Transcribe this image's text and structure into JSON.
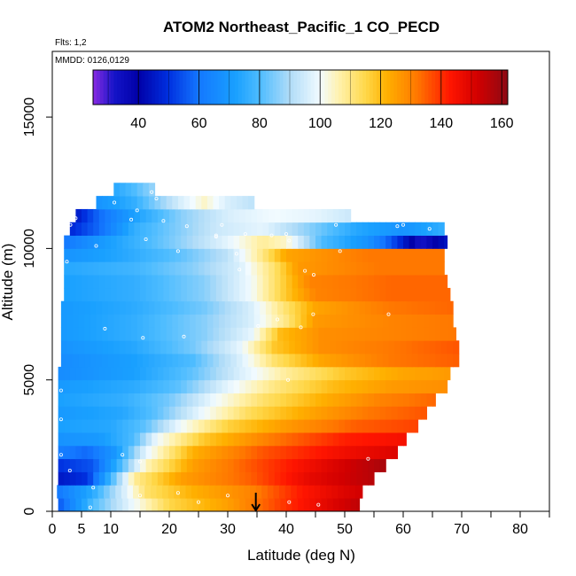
{
  "chart_data": {
    "type": "heatmap",
    "title": "ATOM2 Northeast_Pacific_1 CO_PECD",
    "flights_label": "Flts: 1,2",
    "dates_label": "MMDD: 0126,0129",
    "xlabel": "Latitude (deg N)",
    "ylabel": "Altitude (m)",
    "xlim": [
      0,
      85
    ],
    "ylim": [
      0,
      17500
    ],
    "x_ticks": [
      0,
      5,
      10,
      20,
      30,
      40,
      50,
      60,
      70,
      80
    ],
    "x_minor_ticks": [
      15,
      25,
      35,
      45,
      55,
      65,
      75,
      85
    ],
    "y_ticks": [
      0,
      5000,
      10000,
      15000
    ],
    "colorbar": {
      "range": [
        25,
        162
      ],
      "ticks": [
        40,
        60,
        80,
        100,
        120,
        140,
        160
      ],
      "stops": [
        {
          "v": 25,
          "c": "#8a2be2"
        },
        {
          "v": 32,
          "c": "#1414c8"
        },
        {
          "v": 40,
          "c": "#0000a8"
        },
        {
          "v": 50,
          "c": "#0030e0"
        },
        {
          "v": 60,
          "c": "#1478ff"
        },
        {
          "v": 72,
          "c": "#19a0ff"
        },
        {
          "v": 80,
          "c": "#4dbcff"
        },
        {
          "v": 90,
          "c": "#b0dcf8"
        },
        {
          "v": 100,
          "c": "#f2fbff"
        },
        {
          "v": 106,
          "c": "#fff2b0"
        },
        {
          "v": 115,
          "c": "#ffd84a"
        },
        {
          "v": 122,
          "c": "#ffb000"
        },
        {
          "v": 132,
          "c": "#ff7800"
        },
        {
          "v": 143,
          "c": "#ff1500"
        },
        {
          "v": 152,
          "c": "#d20000"
        },
        {
          "v": 162,
          "c": "#8c0a14"
        }
      ]
    },
    "marker": {
      "x": 34.8,
      "label": "arrow"
    },
    "alt_bins": [
      {
        "alt": 250,
        "lat": [
          1.0,
          52.5
        ],
        "vals": [
          [
            1,
            55
          ],
          [
            7,
            80
          ],
          [
            14,
            100
          ],
          [
            20,
            115
          ],
          [
            30,
            125
          ],
          [
            40,
            140
          ],
          [
            48,
            150
          ],
          [
            52.5,
            155
          ]
        ]
      },
      {
        "alt": 750,
        "lat": [
          0.8,
          53.0
        ],
        "vals": [
          [
            0.8,
            60
          ],
          [
            7,
            75
          ],
          [
            12,
            95
          ],
          [
            16,
            112
          ],
          [
            24,
            122
          ],
          [
            34,
            130
          ],
          [
            42,
            142
          ],
          [
            50,
            150
          ],
          [
            53,
            152
          ]
        ]
      },
      {
        "alt": 1250,
        "lat": [
          1.0,
          55.0
        ],
        "vals": [
          [
            1,
            45
          ],
          [
            6,
            50
          ],
          [
            10,
            78
          ],
          [
            14,
            108
          ],
          [
            22,
            125
          ],
          [
            34,
            135
          ],
          [
            44,
            148
          ],
          [
            55,
            156
          ]
        ]
      },
      {
        "alt": 1750,
        "lat": [
          1.0,
          57.0
        ],
        "vals": [
          [
            1,
            50
          ],
          [
            7,
            55
          ],
          [
            11,
            75
          ],
          [
            16,
            105
          ],
          [
            24,
            125
          ],
          [
            36,
            138
          ],
          [
            48,
            150
          ],
          [
            57,
            158
          ]
        ]
      },
      {
        "alt": 2250,
        "lat": [
          1.0,
          59.0
        ],
        "vals": [
          [
            1,
            62
          ],
          [
            6,
            58
          ],
          [
            11,
            70
          ],
          [
            16,
            98
          ],
          [
            24,
            122
          ],
          [
            36,
            136
          ],
          [
            50,
            146
          ],
          [
            59,
            150
          ]
        ]
      },
      {
        "alt": 2750,
        "lat": [
          1.0,
          60.5
        ],
        "vals": [
          [
            1,
            68
          ],
          [
            8,
            70
          ],
          [
            14,
            80
          ],
          [
            18,
            100
          ],
          [
            26,
            118
          ],
          [
            38,
            132
          ],
          [
            50,
            142
          ],
          [
            60.5,
            145
          ]
        ]
      },
      {
        "alt": 3250,
        "lat": [
          1.0,
          62.5
        ],
        "vals": [
          [
            1,
            72
          ],
          [
            10,
            74
          ],
          [
            16,
            82
          ],
          [
            22,
            100
          ],
          [
            30,
            116
          ],
          [
            40,
            126
          ],
          [
            52,
            135
          ],
          [
            62.5,
            138
          ]
        ]
      },
      {
        "alt": 3750,
        "lat": [
          1.0,
          64.0
        ],
        "vals": [
          [
            1,
            70
          ],
          [
            12,
            74
          ],
          [
            18,
            82
          ],
          [
            26,
            100
          ],
          [
            34,
            114
          ],
          [
            44,
            124
          ],
          [
            54,
            132
          ],
          [
            64,
            136
          ]
        ]
      },
      {
        "alt": 4250,
        "lat": [
          1.0,
          65.5
        ],
        "vals": [
          [
            1,
            72
          ],
          [
            12,
            76
          ],
          [
            20,
            84
          ],
          [
            28,
            100
          ],
          [
            36,
            112
          ],
          [
            46,
            122
          ],
          [
            56,
            130
          ],
          [
            65.5,
            134
          ]
        ]
      },
      {
        "alt": 4750,
        "lat": [
          1.0,
          67.5
        ],
        "vals": [
          [
            1,
            70
          ],
          [
            14,
            75
          ],
          [
            22,
            82
          ],
          [
            30,
            98
          ],
          [
            38,
            110
          ],
          [
            48,
            120
          ],
          [
            58,
            126
          ],
          [
            67.5,
            128
          ]
        ]
      },
      {
        "alt": 5250,
        "lat": [
          1.0,
          68.0
        ],
        "vals": [
          [
            1,
            66
          ],
          [
            14,
            72
          ],
          [
            24,
            82
          ],
          [
            32,
            96
          ],
          [
            40,
            108
          ],
          [
            50,
            118
          ],
          [
            60,
            124
          ],
          [
            68,
            126
          ]
        ]
      },
      {
        "alt": 5750,
        "lat": [
          1.5,
          69.5
        ],
        "vals": [
          [
            1.5,
            66
          ],
          [
            14,
            72
          ],
          [
            24,
            80
          ],
          [
            32,
            96
          ],
          [
            38,
            112
          ],
          [
            46,
            124
          ],
          [
            58,
            132
          ],
          [
            69.5,
            135
          ]
        ]
      },
      {
        "alt": 6250,
        "lat": [
          1.5,
          69.5
        ],
        "vals": [
          [
            1.5,
            68
          ],
          [
            14,
            74
          ],
          [
            24,
            84
          ],
          [
            32,
            98
          ],
          [
            38,
            118
          ],
          [
            46,
            128
          ],
          [
            58,
            132
          ],
          [
            69.5,
            136
          ]
        ]
      },
      {
        "alt": 6750,
        "lat": [
          1.5,
          69.0
        ],
        "vals": [
          [
            1.5,
            70
          ],
          [
            14,
            76
          ],
          [
            26,
            86
          ],
          [
            34,
            98
          ],
          [
            39,
            120
          ],
          [
            46,
            128
          ],
          [
            58,
            130
          ],
          [
            69,
            132
          ]
        ]
      },
      {
        "alt": 7250,
        "lat": [
          1.5,
          68.5
        ],
        "vals": [
          [
            1.5,
            70
          ],
          [
            14,
            76
          ],
          [
            26,
            86
          ],
          [
            34,
            96
          ],
          [
            40,
            110
          ],
          [
            45,
            126
          ],
          [
            58,
            130
          ],
          [
            68.5,
            132
          ]
        ]
      },
      {
        "alt": 7750,
        "lat": [
          1.5,
          68.5
        ],
        "vals": [
          [
            1.5,
            70
          ],
          [
            14,
            75
          ],
          [
            26,
            84
          ],
          [
            34,
            96
          ],
          [
            40,
            112
          ],
          [
            45,
            124
          ],
          [
            58,
            132
          ],
          [
            68.5,
            134
          ]
        ]
      },
      {
        "alt": 8250,
        "lat": [
          2.0,
          68.0
        ],
        "vals": [
          [
            2,
            72
          ],
          [
            14,
            76
          ],
          [
            26,
            86
          ],
          [
            34,
            100
          ],
          [
            40,
            118
          ],
          [
            45,
            130
          ],
          [
            58,
            134
          ],
          [
            68,
            134
          ]
        ]
      },
      {
        "alt": 8750,
        "lat": [
          2.0,
          67.5
        ],
        "vals": [
          [
            2,
            72
          ],
          [
            14,
            76
          ],
          [
            26,
            86
          ],
          [
            34,
            100
          ],
          [
            40,
            118
          ],
          [
            44,
            130
          ],
          [
            58,
            134
          ],
          [
            67.5,
            134
          ]
        ]
      },
      {
        "alt": 9250,
        "lat": [
          2.0,
          67.0
        ],
        "vals": [
          [
            2,
            74
          ],
          [
            14,
            78
          ],
          [
            24,
            86
          ],
          [
            32,
            96
          ],
          [
            38,
            112
          ],
          [
            42,
            126
          ],
          [
            56,
            132
          ],
          [
            67,
            132
          ]
        ]
      },
      {
        "alt": 9750,
        "lat": [
          2.0,
          67.0
        ],
        "vals": [
          [
            2,
            68
          ],
          [
            12,
            74
          ],
          [
            22,
            82
          ],
          [
            30,
            92
          ],
          [
            36,
            110
          ],
          [
            40,
            124
          ],
          [
            54,
            132
          ],
          [
            67,
            132
          ]
        ]
      },
      {
        "alt": 10250,
        "lat": [
          2.0,
          67.5
        ],
        "vals": [
          [
            2,
            60
          ],
          [
            10,
            72
          ],
          [
            20,
            84
          ],
          [
            30,
            98
          ],
          [
            36,
            108
          ],
          [
            40,
            104
          ],
          [
            46,
            80
          ],
          [
            54,
            68
          ],
          [
            58,
            55
          ],
          [
            61,
            42
          ],
          [
            63,
            32
          ],
          [
            67.5,
            45
          ]
        ]
      },
      {
        "alt": 10750,
        "lat": [
          3.0,
          67.0
        ],
        "vals": [
          [
            3,
            48
          ],
          [
            8,
            58
          ],
          [
            14,
            76
          ],
          [
            22,
            86
          ],
          [
            28,
            94
          ],
          [
            36,
            98
          ],
          [
            44,
            86
          ],
          [
            52,
            74
          ],
          [
            60,
            68
          ],
          [
            67,
            76
          ]
        ]
      },
      {
        "alt": 11250,
        "lat": [
          4.0,
          51.0
        ],
        "vals": [
          [
            4,
            45
          ],
          [
            8,
            58
          ],
          [
            14,
            72
          ],
          [
            22,
            86
          ],
          [
            30,
            96
          ],
          [
            38,
            100
          ],
          [
            45,
            98
          ],
          [
            51,
            94
          ]
        ]
      },
      {
        "alt": 11750,
        "lat": [
          7.5,
          34.5
        ],
        "vals": [
          [
            7.5,
            68
          ],
          [
            14,
            76
          ],
          [
            22,
            96
          ],
          [
            26,
            104
          ],
          [
            30,
            96
          ],
          [
            34.5,
            92
          ]
        ]
      },
      {
        "alt": 12250,
        "lat": [
          10.5,
          17.5
        ],
        "vals": [
          [
            10.5,
            74
          ],
          [
            14,
            80
          ],
          [
            17.5,
            88
          ]
        ]
      }
    ],
    "points": [
      [
        6.5,
        150
      ],
      [
        15,
        600
      ],
      [
        21.5,
        700
      ],
      [
        25,
        350
      ],
      [
        30,
        600
      ],
      [
        40.5,
        350
      ],
      [
        45.5,
        250
      ],
      [
        7,
        900
      ],
      [
        3,
        1550
      ],
      [
        15,
        1900
      ],
      [
        54,
        2000
      ],
      [
        1.5,
        2150
      ],
      [
        12,
        2150
      ],
      [
        1.5,
        3500
      ],
      [
        1.5,
        4600
      ],
      [
        40.3,
        5000
      ],
      [
        42.5,
        7000
      ],
      [
        35.2,
        7050
      ],
      [
        9,
        6950
      ],
      [
        22.5,
        6650
      ],
      [
        15.5,
        6600
      ],
      [
        38.5,
        7300
      ],
      [
        44.6,
        7500
      ],
      [
        57.5,
        7500
      ],
      [
        2.5,
        9500
      ],
      [
        32,
        9200
      ],
      [
        43.2,
        9150
      ],
      [
        44.7,
        9000
      ],
      [
        31.5,
        9800
      ],
      [
        49.2,
        9900
      ],
      [
        21.5,
        9900
      ],
      [
        40.5,
        10300
      ],
      [
        37.5,
        10500
      ],
      [
        28,
        10450
      ],
      [
        40,
        10550
      ],
      [
        48.5,
        10900
      ],
      [
        59,
        10850
      ],
      [
        60,
        10900
      ],
      [
        64.5,
        10750
      ],
      [
        29,
        10900
      ],
      [
        23,
        10850
      ],
      [
        33,
        10550
      ],
      [
        19,
        11050
      ],
      [
        28,
        10500
      ],
      [
        13.5,
        11100
      ],
      [
        14.5,
        11450
      ],
      [
        10.6,
        11750
      ],
      [
        17.8,
        11900
      ],
      [
        4,
        11150
      ],
      [
        7.5,
        10100
      ],
      [
        16,
        10350
      ],
      [
        17,
        12150
      ],
      [
        3.1,
        10900
      ]
    ]
  }
}
